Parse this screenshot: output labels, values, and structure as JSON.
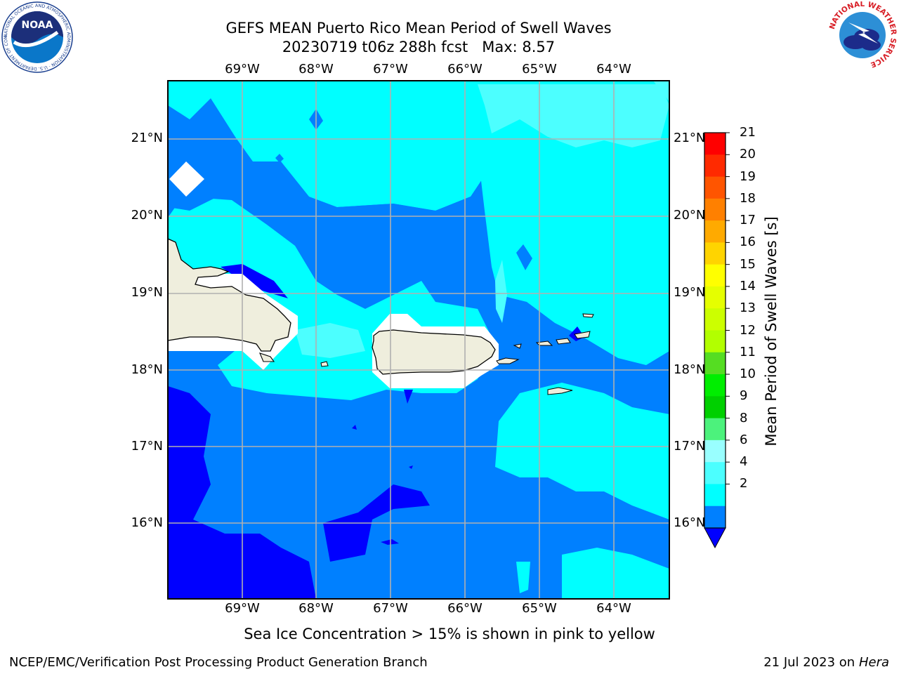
{
  "header": {
    "title_line1": "GEFS MEAN Puerto Rico Mean Period of Swell Waves",
    "title_line2": "20230719 t06z 288h fcst   Max: 8.57"
  },
  "logos": {
    "noaa_text": "NOAA",
    "noaa_ring_text": "NATIONAL OCEANIC AND ATMOSPHERIC ADMINISTRATION · U.S. DEPARTMENT OF COMMERCE",
    "nws_ring_text": "NATIONAL WEATHER SERVICE"
  },
  "axes": {
    "lon_labels": [
      "69°W",
      "68°W",
      "67°W",
      "66°W",
      "65°W",
      "64°W"
    ],
    "lat_labels": [
      "21°N",
      "20°N",
      "19°N",
      "18°N",
      "17°N",
      "16°N"
    ]
  },
  "map": {
    "land_color": "#efeedd",
    "no_data_color": "#ffffff",
    "grid_color": "#b0b0b0"
  },
  "colorbar": {
    "title": "Mean Period of Swell Waves [s]",
    "ticks": [
      "21",
      "20",
      "19",
      "18",
      "17",
      "16",
      "15",
      "14",
      "13",
      "12",
      "11",
      "10",
      "9",
      "8",
      "6",
      "4",
      "2"
    ],
    "colors": [
      "#ff0000",
      "#ff2a00",
      "#ff5500",
      "#ff8000",
      "#ffaa00",
      "#ffd400",
      "#ffff00",
      "#e5ff00",
      "#ccff00",
      "#b2ff00",
      "#55dd22",
      "#00ee00",
      "#00d000",
      "#4cf27c",
      "#99ffff",
      "#4cffff",
      "#00ffff",
      "#0080ff"
    ],
    "extend_color": "#0000ff"
  },
  "footer": {
    "ice_note": "Sea Ice Concentration > 15% is shown in pink to yellow",
    "credit": "NCEP/EMC/Verification Post Processing Product Generation Branch",
    "date": "21 Jul 2023 on ",
    "host": "Hera"
  }
}
